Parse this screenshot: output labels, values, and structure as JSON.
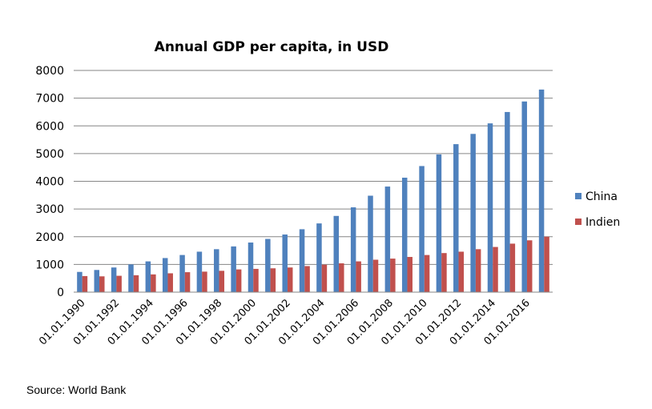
{
  "chart_data": {
    "type": "bar",
    "title": "Annual GDP per capita, in USD",
    "xlabel": "",
    "ylabel": "",
    "ylim": [
      0,
      8000
    ],
    "yticks": [
      "0",
      "1000",
      "2000",
      "3000",
      "4000",
      "5000",
      "6000",
      "7000",
      "8000"
    ],
    "grid": true,
    "legend_position": "right",
    "categories": [
      "01.01.1990",
      "01.01.1991",
      "01.01.1992",
      "01.01.1993",
      "01.01.1994",
      "01.01.1995",
      "01.01.1996",
      "01.01.1997",
      "01.01.1998",
      "01.01.1999",
      "01.01.2000",
      "01.01.2001",
      "01.01.2002",
      "01.01.2003",
      "01.01.2004",
      "01.01.2005",
      "01.01.2006",
      "01.01.2007",
      "01.01.2008",
      "01.01.2009",
      "01.01.2010",
      "01.01.2011",
      "01.01.2012",
      "01.01.2013",
      "01.01.2014",
      "01.01.2015",
      "01.01.2016",
      "01.01.2017"
    ],
    "tick_labels_shown": [
      "01.01.1990",
      "01.01.1992",
      "01.01.1994",
      "01.01.1996",
      "01.01.1998",
      "01.01.2000",
      "01.01.2002",
      "01.01.2004",
      "01.01.2006",
      "01.01.2008",
      "01.01.2010",
      "01.01.2012",
      "01.01.2014",
      "01.01.2016"
    ],
    "series": [
      {
        "name": "China",
        "color": "#4f81bd",
        "values": [
          730,
          800,
          890,
          1000,
          1110,
          1230,
          1340,
          1460,
          1550,
          1650,
          1790,
          1920,
          2080,
          2270,
          2480,
          2750,
          3060,
          3480,
          3810,
          4130,
          4550,
          4970,
          5340,
          5710,
          6090,
          6500,
          6880,
          7310
        ]
      },
      {
        "name": "Indien",
        "color": "#c0504d",
        "values": [
          580,
          570,
          590,
          610,
          640,
          680,
          720,
          740,
          770,
          820,
          840,
          860,
          890,
          940,
          990,
          1040,
          1110,
          1170,
          1210,
          1270,
          1340,
          1410,
          1460,
          1550,
          1630,
          1750,
          1870,
          2000
        ]
      }
    ]
  },
  "footer": {
    "source": "Source: World Bank"
  }
}
